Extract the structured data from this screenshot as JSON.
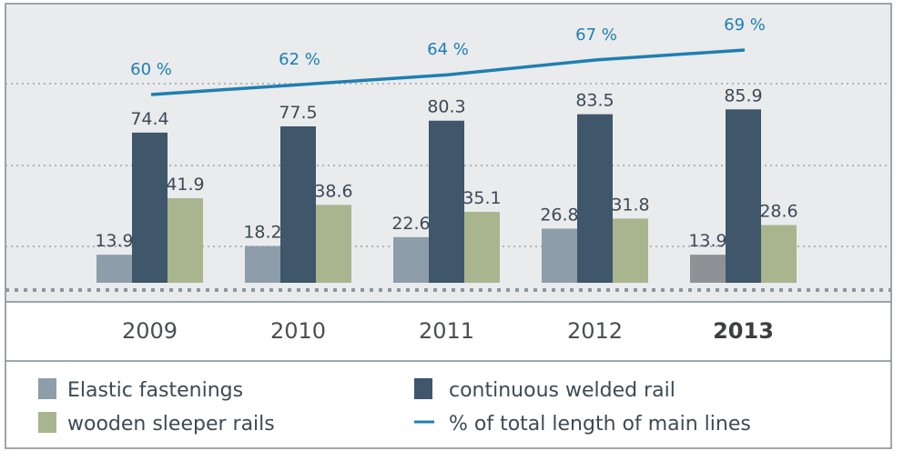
{
  "chart_data": {
    "type": "bar",
    "categories": [
      "2009",
      "2010",
      "2011",
      "2012",
      "2013"
    ],
    "highlight_category": "2013",
    "ylim": [
      0,
      100
    ],
    "grid": true,
    "series": [
      {
        "name": "Elastic fastenings",
        "values": [
          13.9,
          18.2,
          22.6,
          26.8,
          13.9
        ],
        "color": "#8d9daa",
        "highlight_color": "#8e9296",
        "labels": [
          "13.9",
          "18.2",
          "22.6",
          "26.8",
          "13.9"
        ]
      },
      {
        "name": "continuous welded rail",
        "values": [
          74.4,
          77.5,
          80.3,
          83.5,
          85.9
        ],
        "color": "#3f566b",
        "labels": [
          "74.4",
          "77.5",
          "80.3",
          "83.5",
          "85.9"
        ]
      },
      {
        "name": "wooden sleeper rails",
        "values": [
          41.9,
          38.6,
          35.1,
          31.8,
          28.6
        ],
        "color": "#a9b58e",
        "labels": [
          "41.9",
          "38.6",
          "35.1",
          "31.8",
          "28.6"
        ]
      }
    ],
    "line_series": {
      "name": "% of total length of main lines",
      "values": [
        60,
        62,
        64,
        67,
        69
      ],
      "labels": [
        "60 %",
        "62 %",
        "64 %",
        "67 %",
        "69 %"
      ],
      "color": "#1f7fb0"
    }
  },
  "legend": [
    {
      "label": "Elastic fastenings",
      "swatch": "rect",
      "color": "#8d9daa"
    },
    {
      "label": "continuous welded rail",
      "swatch": "rect",
      "color": "#3f566b"
    },
    {
      "label": "wooden sleeper rails",
      "swatch": "rect",
      "color": "#a9b58e"
    },
    {
      "label": "% of total length of main lines",
      "swatch": "line",
      "color": "#1f7fb0"
    }
  ],
  "colors": {
    "plot_bg": "#e9ebed",
    "frame": "#7c8a95",
    "grid": "#9aa3ab",
    "baseline": "#8c969f"
  }
}
